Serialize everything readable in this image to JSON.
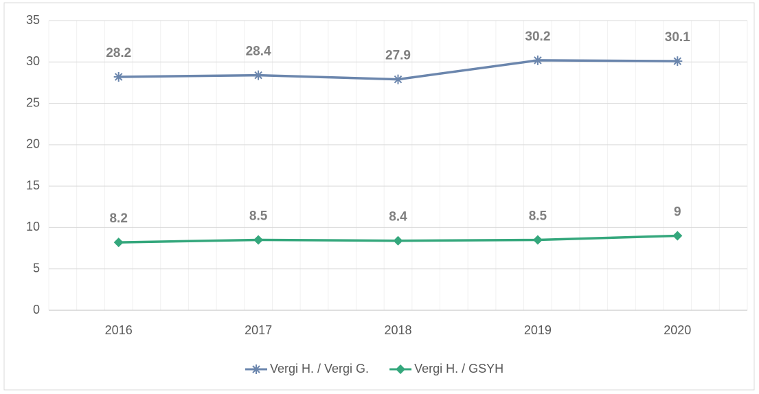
{
  "chart_data": {
    "type": "line",
    "categories": [
      "2016",
      "2017",
      "2018",
      "2019",
      "2020"
    ],
    "series": [
      {
        "name": "Vergi H. / Vergi G.",
        "color": "#6b86ad",
        "marker": "asterisk",
        "values": [
          28.2,
          28.4,
          27.9,
          30.2,
          30.1
        ]
      },
      {
        "name": "Vergi H. / GSYH",
        "color": "#34a77c",
        "marker": "diamond",
        "values": [
          8.2,
          8.5,
          8.4,
          8.5,
          9
        ]
      }
    ],
    "ylim": [
      0,
      35
    ],
    "yticks": [
      0,
      5,
      10,
      15,
      20,
      25,
      30,
      35
    ],
    "grid": true,
    "legend": "bottom"
  }
}
